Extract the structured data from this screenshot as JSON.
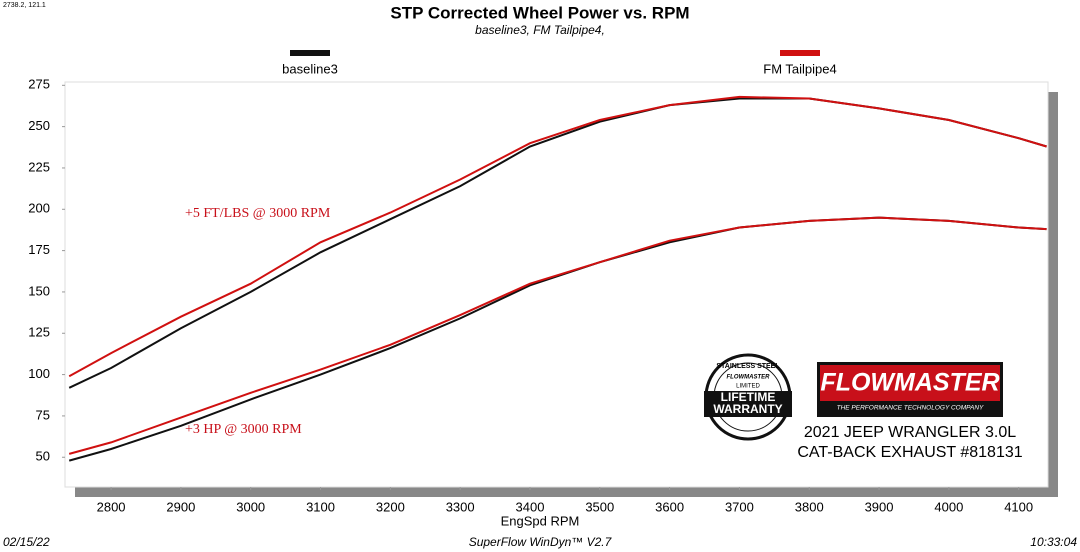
{
  "chart_data": {
    "type": "line",
    "title": "STP Corrected Wheel Power vs. RPM",
    "subtitle": "baseline3, FM Tailpipe4,",
    "x_label": "EngSpd  RPM",
    "cursor_readout": "2738.2, 121.1",
    "x": [
      2740,
      2800,
      2900,
      3000,
      3100,
      3200,
      3300,
      3400,
      3500,
      3600,
      3700,
      3800,
      3900,
      4000,
      4100,
      4140
    ],
    "series": [
      {
        "name": "baseline3",
        "color": "#111111",
        "values": [
          92,
          104,
          128,
          150,
          174,
          194,
          214,
          238,
          253,
          263,
          267,
          267,
          261,
          254,
          243,
          238
        ]
      },
      {
        "name": "FM Tailpipe4",
        "color": "#d01010",
        "values": [
          99,
          113,
          135,
          155,
          180,
          198,
          218,
          240,
          254,
          263,
          268,
          267,
          261,
          254,
          243,
          238
        ]
      }
    ],
    "power_series": [
      {
        "values": [
          48,
          55,
          69,
          85,
          100,
          116,
          134,
          154,
          168,
          180,
          189,
          193,
          195,
          193,
          189,
          188
        ]
      },
      {
        "values": [
          52,
          59,
          74,
          89,
          103,
          118,
          136,
          155,
          168,
          181,
          189,
          193,
          195,
          193,
          189,
          188
        ]
      }
    ],
    "xlim": [
      2734,
      4142
    ],
    "xticks": [
      2800,
      2900,
      3000,
      3100,
      3200,
      3300,
      3400,
      3500,
      3600,
      3700,
      3800,
      3900,
      4000,
      4100
    ],
    "ylim": [
      32,
      277
    ],
    "yticks": [
      50,
      75,
      100,
      125,
      150,
      175,
      200,
      225,
      250,
      275
    ],
    "annotations": [
      "+5 FT/LBS @ 3000 RPM",
      "+3 HP @ 3000 RPM"
    ]
  },
  "branding": {
    "brand": "FLOWMASTER",
    "tagline": "THE PERFORMANCE TECHNOLOGY COMPANY",
    "badge_top": "STAINLESS STEEL",
    "badge_brand": "FLOWMASTER",
    "badge_limited": "LIMITED",
    "badge_line1": "LIFETIME",
    "badge_line2": "WARRANTY",
    "caption_line1": "2021 JEEP WRANGLER 3.0L",
    "caption_line2": "CAT-BACK EXHAUST #818131"
  },
  "footer": {
    "date": "02/15/22",
    "software": "SuperFlow WinDyn™  V2.7",
    "time": "10:33:04"
  }
}
